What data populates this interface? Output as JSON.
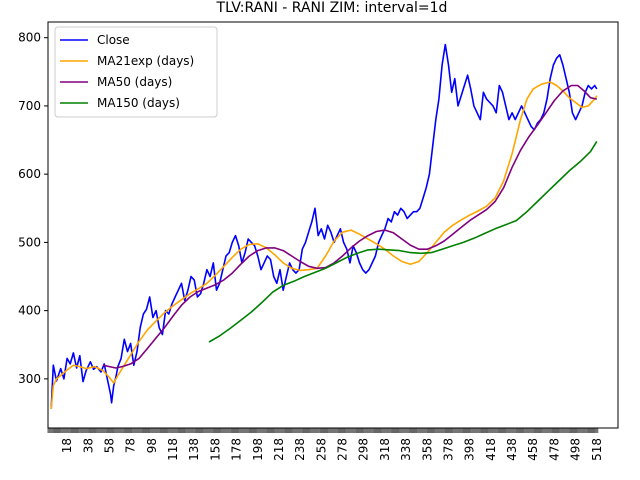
{
  "chart_data": {
    "type": "line",
    "title": "TLV:RANI - RANI ZIM: interval=1d",
    "xlabel": "",
    "ylabel": "",
    "xlim": [
      0,
      538
    ],
    "ylim": [
      228,
      823
    ],
    "x_ticks": [
      18,
      38,
      58,
      78,
      98,
      118,
      138,
      158,
      178,
      198,
      218,
      238,
      258,
      278,
      298,
      318,
      338,
      358,
      378,
      398,
      418,
      438,
      458,
      478,
      498,
      518
    ],
    "y_ticks": [
      300,
      400,
      500,
      600,
      700,
      800
    ],
    "grid": false,
    "legend": "top-left",
    "series": [
      {
        "name": "Close",
        "color": "#0000ff",
        "x": [
          3,
          5,
          8,
          12,
          15,
          18,
          21,
          24,
          27,
          30,
          33,
          36,
          40,
          43,
          46,
          50,
          53,
          56,
          59,
          60,
          62,
          64,
          66,
          69,
          72,
          75,
          78,
          81,
          84,
          87,
          90,
          93,
          96,
          99,
          102,
          105,
          108,
          111,
          114,
          117,
          120,
          123,
          126,
          129,
          132,
          135,
          138,
          141,
          144,
          147,
          150,
          153,
          156,
          159,
          162,
          165,
          168,
          171,
          174,
          177,
          180,
          183,
          186,
          189,
          192,
          195,
          198,
          201,
          204,
          207,
          210,
          213,
          216,
          219,
          222,
          225,
          228,
          231,
          234,
          237,
          240,
          243,
          246,
          249,
          252,
          255,
          258,
          261,
          264,
          267,
          270,
          273,
          276,
          279,
          282,
          285,
          288,
          291,
          294,
          297,
          300,
          303,
          306,
          309,
          312,
          315,
          318,
          321,
          324,
          327,
          330,
          333,
          336,
          339,
          342,
          345,
          348,
          351,
          354,
          357,
          360,
          363,
          366,
          369,
          372,
          375,
          378,
          381,
          384,
          387,
          390,
          393,
          396,
          399,
          402,
          405,
          408,
          411,
          414,
          417,
          420,
          423,
          426,
          429,
          432,
          435,
          438,
          441,
          444,
          447,
          450,
          453,
          456,
          459,
          462,
          465,
          468,
          471,
          474,
          477,
          480,
          483,
          486,
          489,
          492,
          495,
          498,
          501,
          504,
          507,
          510,
          513,
          516,
          518
        ],
        "values": [
          256,
          320,
          297,
          315,
          300,
          330,
          322,
          338,
          316,
          334,
          296,
          312,
          325,
          314,
          318,
          310,
          322,
          300,
          278,
          265,
          290,
          302,
          318,
          330,
          358,
          340,
          352,
          320,
          340,
          375,
          395,
          402,
          420,
          390,
          400,
          375,
          365,
          400,
          395,
          410,
          420,
          430,
          440,
          415,
          430,
          450,
          445,
          420,
          425,
          440,
          460,
          450,
          470,
          430,
          440,
          460,
          480,
          485,
          500,
          510,
          495,
          470,
          485,
          505,
          500,
          495,
          480,
          460,
          470,
          480,
          475,
          450,
          440,
          460,
          430,
          450,
          470,
          460,
          455,
          460,
          490,
          500,
          515,
          530,
          550,
          510,
          520,
          505,
          525,
          515,
          500,
          510,
          520,
          500,
          490,
          470,
          495,
          485,
          470,
          460,
          455,
          460,
          470,
          480,
          500,
          510,
          520,
          535,
          530,
          545,
          540,
          550,
          545,
          535,
          540,
          545,
          545,
          550,
          565,
          580,
          600,
          640,
          680,
          710,
          760,
          790,
          760,
          720,
          740,
          700,
          715,
          730,
          745,
          725,
          700,
          690,
          680,
          720,
          710,
          705,
          700,
          690,
          730,
          720,
          700,
          680,
          690,
          680,
          690,
          700,
          690,
          680,
          670,
          665,
          675,
          680,
          690,
          710,
          740,
          760,
          770,
          775,
          760,
          740,
          720,
          690,
          680,
          690,
          700,
          720,
          730,
          725,
          730,
          725
        ],
        "width": 1.6
      },
      {
        "name": "MA21exp (days)",
        "color": "#ffa500",
        "x": [
          3,
          5,
          8,
          12,
          18,
          24,
          30,
          36,
          44,
          52,
          58,
          62,
          66,
          72,
          78,
          86,
          94,
          102,
          110,
          118,
          126,
          134,
          142,
          150,
          158,
          166,
          174,
          182,
          190,
          198,
          206,
          214,
          222,
          230,
          238,
          246,
          254,
          262,
          270,
          278,
          286,
          294,
          302,
          310,
          318,
          326,
          334,
          342,
          350,
          358,
          366,
          374,
          382,
          390,
          398,
          406,
          414,
          422,
          430,
          438,
          446,
          452,
          458,
          466,
          474,
          480,
          486,
          492,
          498,
          504,
          510,
          516,
          518
        ],
        "values": [
          256,
          290,
          300,
          305,
          313,
          320,
          318,
          315,
          318,
          312,
          302,
          294,
          305,
          320,
          335,
          355,
          372,
          385,
          397,
          407,
          416,
          425,
          432,
          440,
          452,
          465,
          478,
          490,
          497,
          498,
          492,
          482,
          470,
          462,
          459,
          460,
          462,
          480,
          502,
          515,
          518,
          512,
          505,
          498,
          490,
          480,
          472,
          468,
          472,
          485,
          500,
          515,
          525,
          533,
          540,
          546,
          553,
          565,
          590,
          630,
          680,
          710,
          725,
          732,
          735,
          730,
          722,
          712,
          705,
          698,
          700,
          710,
          715
        ],
        "width": 1.6
      },
      {
        "name": "MA50 (days)",
        "color": "#800080",
        "x": [
          52,
          58,
          64,
          70,
          78,
          86,
          94,
          102,
          110,
          118,
          126,
          134,
          142,
          150,
          158,
          166,
          174,
          182,
          190,
          198,
          206,
          214,
          222,
          230,
          238,
          246,
          254,
          262,
          270,
          278,
          286,
          294,
          302,
          310,
          318,
          326,
          334,
          342,
          350,
          358,
          366,
          374,
          382,
          390,
          398,
          406,
          414,
          422,
          430,
          438,
          446,
          454,
          462,
          470,
          478,
          486,
          494,
          500,
          506,
          512,
          518
        ],
        "values": [
          320,
          318,
          316,
          318,
          322,
          330,
          345,
          360,
          375,
          392,
          408,
          420,
          428,
          433,
          438,
          445,
          455,
          468,
          480,
          488,
          492,
          492,
          488,
          480,
          472,
          465,
          462,
          463,
          470,
          480,
          492,
          502,
          510,
          516,
          518,
          514,
          505,
          496,
          490,
          490,
          495,
          502,
          512,
          522,
          532,
          540,
          548,
          560,
          580,
          610,
          635,
          655,
          672,
          690,
          708,
          722,
          730,
          730,
          722,
          712,
          710
        ],
        "width": 1.6
      },
      {
        "name": "MA150 (days)",
        "color": "#008000",
        "x": [
          152,
          162,
          172,
          182,
          192,
          202,
          212,
          222,
          232,
          242,
          252,
          262,
          272,
          282,
          292,
          302,
          312,
          322,
          332,
          342,
          352,
          362,
          372,
          382,
          392,
          402,
          412,
          422,
          432,
          442,
          452,
          462,
          472,
          482,
          492,
          502,
          512,
          518
        ],
        "values": [
          354,
          363,
          374,
          386,
          398,
          412,
          427,
          437,
          443,
          450,
          456,
          462,
          470,
          478,
          484,
          489,
          490,
          489,
          488,
          485,
          484,
          485,
          490,
          495,
          500,
          506,
          513,
          520,
          526,
          532,
          545,
          560,
          575,
          590,
          605,
          618,
          633,
          648
        ],
        "width": 1.6
      }
    ]
  }
}
